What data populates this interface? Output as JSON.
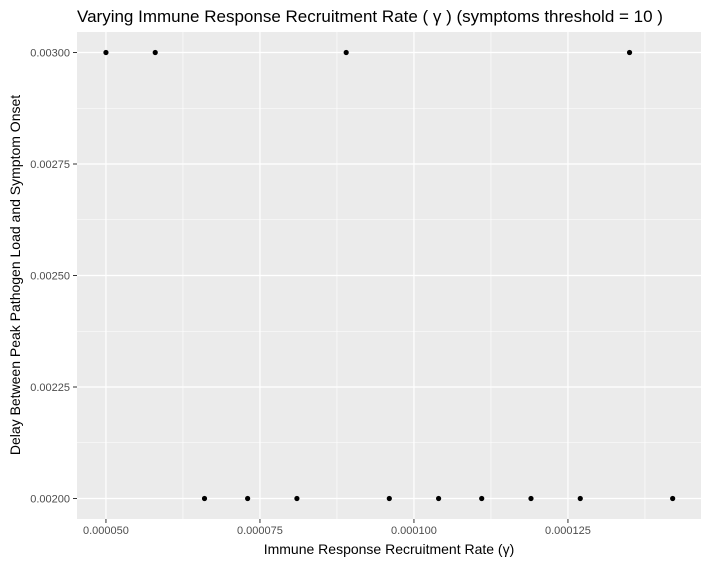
{
  "chart_data": {
    "type": "scatter",
    "title": "Varying Immune Response Recruitment Rate ( γ )  (symptoms threshold =  10 )",
    "xlabel": "Immune Response Recruitment Rate (γ)",
    "ylabel": "Delay Between Peak Pathogen Load and Symptom Onset",
    "xlim": [
      4.53e-05,
      0.0001466
    ],
    "ylim": [
      0.001954,
      0.003046
    ],
    "x_ticks": [
      5e-05,
      7.5e-05,
      0.0001,
      0.000125
    ],
    "x_tick_labels": [
      "0.000050",
      "0.000075",
      "0.000100",
      "0.000125"
    ],
    "y_ticks": [
      0.002,
      0.00225,
      0.0025,
      0.00275,
      0.003
    ],
    "y_tick_labels": [
      "0.00200",
      "0.00225",
      "0.00250",
      "0.00275",
      "0.00300"
    ],
    "grid": true,
    "background_color": "#ebebeb",
    "point_color": "#000000",
    "x": [
      5e-05,
      5.8e-05,
      6.6e-05,
      7.3e-05,
      8.1e-05,
      8.9e-05,
      9.6e-05,
      0.000104,
      0.000111,
      0.000119,
      0.000127,
      0.000135,
      0.000142
    ],
    "y": [
      0.003,
      0.003,
      0.002,
      0.002,
      0.002,
      0.003,
      0.002,
      0.002,
      0.002,
      0.002,
      0.002,
      0.003,
      0.002
    ]
  }
}
